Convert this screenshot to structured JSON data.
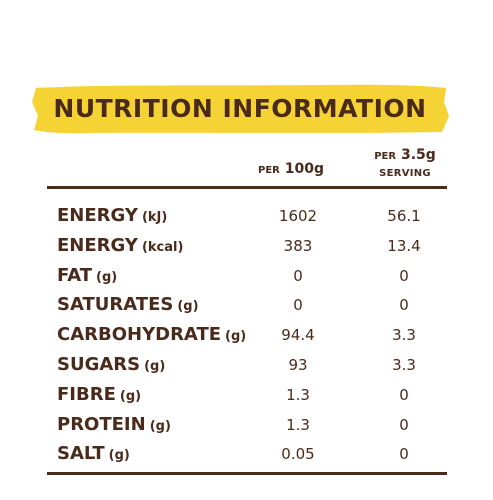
{
  "title": "NUTRITION INFORMATION",
  "colors": {
    "banner": "#f6d335",
    "text": "#4a2a1a",
    "rule": "#4a2a1a"
  },
  "columns": {
    "per100_prefix": "PER",
    "per100_value": "100g",
    "serving_prefix": "PER",
    "serving_value": "3.5g",
    "serving_label": "SERVING"
  },
  "rows": [
    {
      "label": "ENERGY",
      "unit": "(kJ)",
      "per100": "1602",
      "serving": "56.1"
    },
    {
      "label": "ENERGY",
      "unit": "(kcal)",
      "per100": "383",
      "serving": "13.4"
    },
    {
      "label": "FAT",
      "unit": "(g)",
      "per100": "0",
      "serving": "0"
    },
    {
      "label": "SATURATES",
      "unit": "(g)",
      "per100": "0",
      "serving": "0"
    },
    {
      "label": "CARBOHYDRATE",
      "unit": "(g)",
      "per100": "94.4",
      "serving": "3.3"
    },
    {
      "label": "SUGARS",
      "unit": "(g)",
      "per100": "93",
      "serving": "3.3"
    },
    {
      "label": "FIBRE",
      "unit": "(g)",
      "per100": "1.3",
      "serving": "0"
    },
    {
      "label": "PROTEIN",
      "unit": "(g)",
      "per100": "1.3",
      "serving": "0"
    },
    {
      "label": "SALT",
      "unit": "(g)",
      "per100": "0.05",
      "serving": "0"
    }
  ]
}
